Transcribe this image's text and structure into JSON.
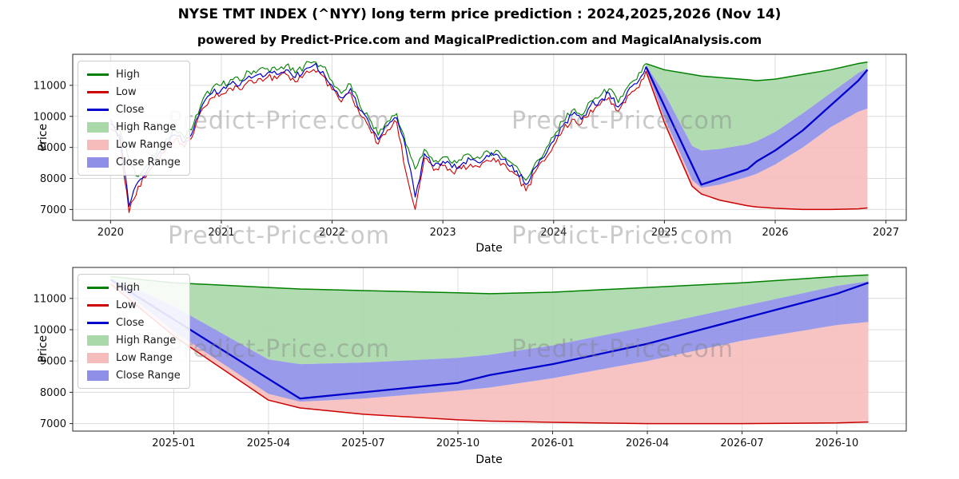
{
  "title": "NYSE TMT INDEX (^NYY) long term price prediction : 2024,2025,2026 (Nov 14)",
  "subtitle": "powered by Predict-Price.com and MagicalPrediction.com and MagicalAnalysis.com",
  "watermark": "Predict-Price.com",
  "legend": [
    {
      "label": "High",
      "type": "line",
      "color": "#008000"
    },
    {
      "label": "Low",
      "type": "line",
      "color": "#cc0000"
    },
    {
      "label": "Close",
      "type": "line",
      "color": "#0000cd"
    },
    {
      "label": "High Range",
      "type": "patch",
      "color": "#a9d8a9"
    },
    {
      "label": "Low Range",
      "type": "patch",
      "color": "#f6bcbc"
    },
    {
      "label": "Close Range",
      "type": "patch",
      "color": "#8f8fe8"
    }
  ],
  "chart_data": [
    {
      "type": "line",
      "title": "",
      "xlabel": "Date",
      "ylabel": "Price",
      "x_tick_labels": [
        "2020",
        "2021",
        "2022",
        "2023",
        "2024",
        "2025",
        "2026",
        "2027"
      ],
      "y_tick_labels": [
        "7000",
        "8000",
        "9000",
        "10000",
        "11000"
      ],
      "ylim": [
        6650,
        12000
      ],
      "grid": true,
      "legend_position": "upper left",
      "history": {
        "start": "2020-01",
        "interval": "monthly",
        "high": [
          9900,
          9560,
          8600,
          8060,
          8450,
          8850,
          9250,
          9550,
          9300,
          9760,
          10550,
          10900,
          11000,
          11190,
          11150,
          11440,
          11490,
          11540,
          11490,
          11640,
          11390,
          11640,
          11760,
          11590,
          11140,
          10740,
          11040,
          10340,
          9940,
          9390,
          9840,
          10090,
          9090,
          8300,
          8940,
          8540,
          8690,
          8490,
          8590,
          8740,
          8640,
          8840,
          8890,
          8590,
          8390,
          7940,
          8490,
          8840,
          9340,
          9840,
          10190,
          10040,
          10490,
          10640,
          10890,
          10440,
          10940,
          11190,
          11700
        ],
        "low": [
          9600,
          9250,
          6900,
          7750,
          8150,
          8560,
          8960,
          9260,
          9010,
          9460,
          10260,
          10600,
          10710,
          10910,
          10860,
          11160,
          11210,
          11260,
          11210,
          11360,
          11110,
          11360,
          11510,
          11310,
          10860,
          10460,
          10760,
          10060,
          9660,
          9110,
          9560,
          9810,
          8200,
          7000,
          8660,
          8260,
          8410,
          8210,
          8310,
          8460,
          8360,
          8560,
          8610,
          8310,
          8110,
          7600,
          8210,
          8560,
          9060,
          9560,
          9910,
          9760,
          10210,
          10360,
          10610,
          10160,
          10660,
          10910,
          11460
        ],
        "close": [
          9750,
          9400,
          7100,
          7900,
          8300,
          8700,
          9100,
          9400,
          9150,
          9600,
          10400,
          10750,
          10850,
          11050,
          11000,
          11300,
          11350,
          11400,
          11350,
          11500,
          11250,
          11500,
          11650,
          11450,
          11000,
          10600,
          10900,
          10200,
          9800,
          9250,
          9700,
          9950,
          8950,
          7400,
          8800,
          8400,
          8550,
          8350,
          8450,
          8600,
          8500,
          8700,
          8750,
          8450,
          8250,
          7800,
          8350,
          8700,
          9200,
          9700,
          10050,
          9900,
          10350,
          10500,
          10750,
          10300,
          10800,
          11050,
          11600
        ]
      },
      "prediction": {
        "dates": [
          "2024-11",
          "2025-01",
          "2025-04",
          "2025-05",
          "2025-07",
          "2025-10",
          "2025-11",
          "2026-01",
          "2026-04",
          "2026-07",
          "2026-10",
          "2026-11"
        ],
        "high": [
          11700,
          11500,
          11350,
          11300,
          11250,
          11180,
          11150,
          11200,
          11350,
          11500,
          11700,
          11750
        ],
        "close_upper": [
          11650,
          10750,
          9050,
          8900,
          8950,
          9100,
          9200,
          9500,
          10100,
          10750,
          11400,
          11550
        ],
        "close": [
          11600,
          10330,
          8430,
          7800,
          8000,
          8300,
          8550,
          8900,
          9550,
          10350,
          11150,
          11500
        ],
        "close_lower": [
          11570,
          9950,
          7950,
          7700,
          7800,
          8050,
          8150,
          8450,
          9000,
          9650,
          10150,
          10250
        ],
        "low": [
          11460,
          9800,
          7750,
          7500,
          7300,
          7120,
          7080,
          7040,
          7000,
          7000,
          7020,
          7050
        ]
      }
    },
    {
      "type": "line",
      "title": "",
      "xlabel": "Date",
      "ylabel": "Price",
      "x_tick_labels": [
        "2025-01",
        "2025-04",
        "2025-07",
        "2025-10",
        "2026-01",
        "2026-04",
        "2026-07",
        "2026-10"
      ],
      "y_tick_labels": [
        "7000",
        "8000",
        "9000",
        "10000",
        "11000"
      ],
      "ylim": [
        6760,
        11990
      ],
      "grid": true,
      "legend_position": "upper left",
      "prediction": {
        "dates": [
          "2024-11",
          "2025-01",
          "2025-04",
          "2025-05",
          "2025-07",
          "2025-10",
          "2025-11",
          "2026-01",
          "2026-04",
          "2026-07",
          "2026-10",
          "2026-11"
        ],
        "high": [
          11700,
          11500,
          11350,
          11300,
          11250,
          11180,
          11150,
          11200,
          11350,
          11500,
          11700,
          11750
        ],
        "close_upper": [
          11650,
          10750,
          9050,
          8900,
          8950,
          9100,
          9200,
          9500,
          10100,
          10750,
          11400,
          11550
        ],
        "close": [
          11600,
          10330,
          8430,
          7800,
          8000,
          8300,
          8550,
          8900,
          9550,
          10350,
          11150,
          11500
        ],
        "close_lower": [
          11570,
          9950,
          7950,
          7700,
          7800,
          8050,
          8150,
          8450,
          9000,
          9650,
          10150,
          10250
        ],
        "low": [
          11460,
          9800,
          7750,
          7500,
          7300,
          7120,
          7080,
          7040,
          7000,
          7000,
          7020,
          7050
        ]
      }
    }
  ]
}
